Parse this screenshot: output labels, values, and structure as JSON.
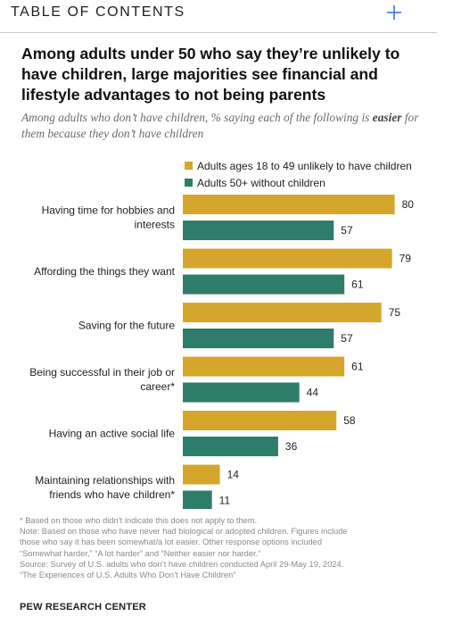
{
  "toc": {
    "label": "TABLE OF CONTENTS",
    "expand_icon": "plus-icon"
  },
  "title": "Among adults under 50 who say they’re unlikely to have children, large majorities see financial and lifestyle advantages to not being parents",
  "subtitle_pre": "Among adults who don’t have children, % saying each of the following is ",
  "subtitle_emph": "easier",
  "subtitle_post": " for them because they don’t have children",
  "colors": {
    "gold": "#d4a72c",
    "teal": "#2e7d6a"
  },
  "chart_data": {
    "type": "bar",
    "orientation": "horizontal",
    "categories": [
      [
        "Having time for hobbies and",
        "interests"
      ],
      [
        "Affording the things they want"
      ],
      [
        "Saving for the future"
      ],
      [
        "Being successful in their job or",
        "career*"
      ],
      [
        "Having an active social life"
      ],
      [
        "Maintaining relationships with",
        "friends who have children*"
      ]
    ],
    "series": [
      {
        "name": "Adults ages 18 to 49 unlikely to have children",
        "color": "#d4a72c",
        "values": [
          80,
          79,
          75,
          61,
          58,
          14
        ]
      },
      {
        "name": "Adults 50+ without children",
        "color": "#2e7d6a",
        "values": [
          57,
          61,
          57,
          44,
          36,
          11
        ]
      }
    ],
    "xlim": [
      0,
      100
    ],
    "grid": false,
    "legend_position": "top"
  },
  "notes": [
    "* Based on those who didn’t indicate this does not apply to them.",
    "Note: Based on those who have never had biological or adopted children. Figures include",
    "those who say it has been somewhat/a lot easier. Other response options included",
    "“Somewhat harder,” “A lot harder” and “Neither easier nor harder.”",
    "Source: Survey of U.S. adults who don’t have children conducted April 29-May 19, 2024.",
    "“The Experiences of U.S. Adults Who Don’t Have Children”"
  ],
  "footer": "PEW RESEARCH CENTER"
}
